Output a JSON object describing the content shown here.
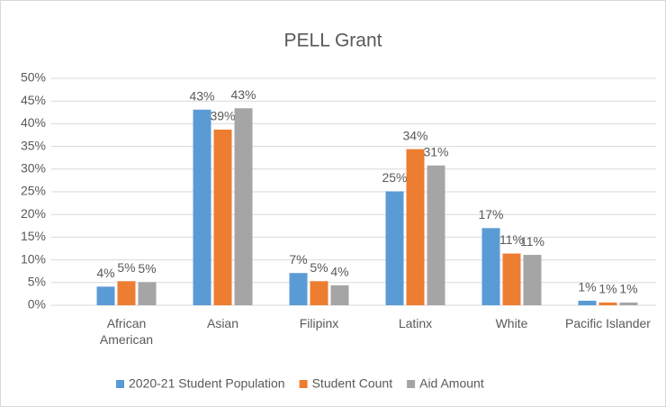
{
  "chart_data": {
    "type": "bar",
    "title": "PELL Grant",
    "categories": [
      "African American",
      "Asian",
      "Filipinx",
      "Latinx",
      "White",
      "Pacific Islander"
    ],
    "series": [
      {
        "name": "2020-21 Student Population",
        "color": "#5b9bd5",
        "values": [
          4.1,
          43.1,
          7.1,
          25.1,
          17.0,
          1.0
        ],
        "value_labels": [
          "4%",
          "43%",
          "7%",
          "25%",
          "17%",
          "1%"
        ]
      },
      {
        "name": "Student Count",
        "color": "#ed7d31",
        "values": [
          5.3,
          38.7,
          5.3,
          34.4,
          11.4,
          0.6
        ],
        "value_labels": [
          "5%",
          "39%",
          "5%",
          "34%",
          "11%",
          "1%"
        ]
      },
      {
        "name": "Aid Amount",
        "color": "#a5a5a5",
        "values": [
          5.1,
          43.4,
          4.4,
          30.8,
          11.1,
          0.6
        ],
        "value_labels": [
          "5%",
          "43%",
          "4%",
          "31%",
          "11%",
          "1%"
        ]
      }
    ],
    "ylim": [
      0,
      50
    ],
    "yticks": [
      {
        "value": 0,
        "label": "0%"
      },
      {
        "value": 5,
        "label": "5%"
      },
      {
        "value": 10,
        "label": "10%"
      },
      {
        "value": 15,
        "label": "15%"
      },
      {
        "value": 20,
        "label": "20%"
      },
      {
        "value": 25,
        "label": "25%"
      },
      {
        "value": 30,
        "label": "30%"
      },
      {
        "value": 35,
        "label": "35%"
      },
      {
        "value": 40,
        "label": "40%"
      },
      {
        "value": 45,
        "label": "45%"
      },
      {
        "value": 50,
        "label": "50%"
      }
    ],
    "grid": true,
    "legend": "bottom"
  }
}
